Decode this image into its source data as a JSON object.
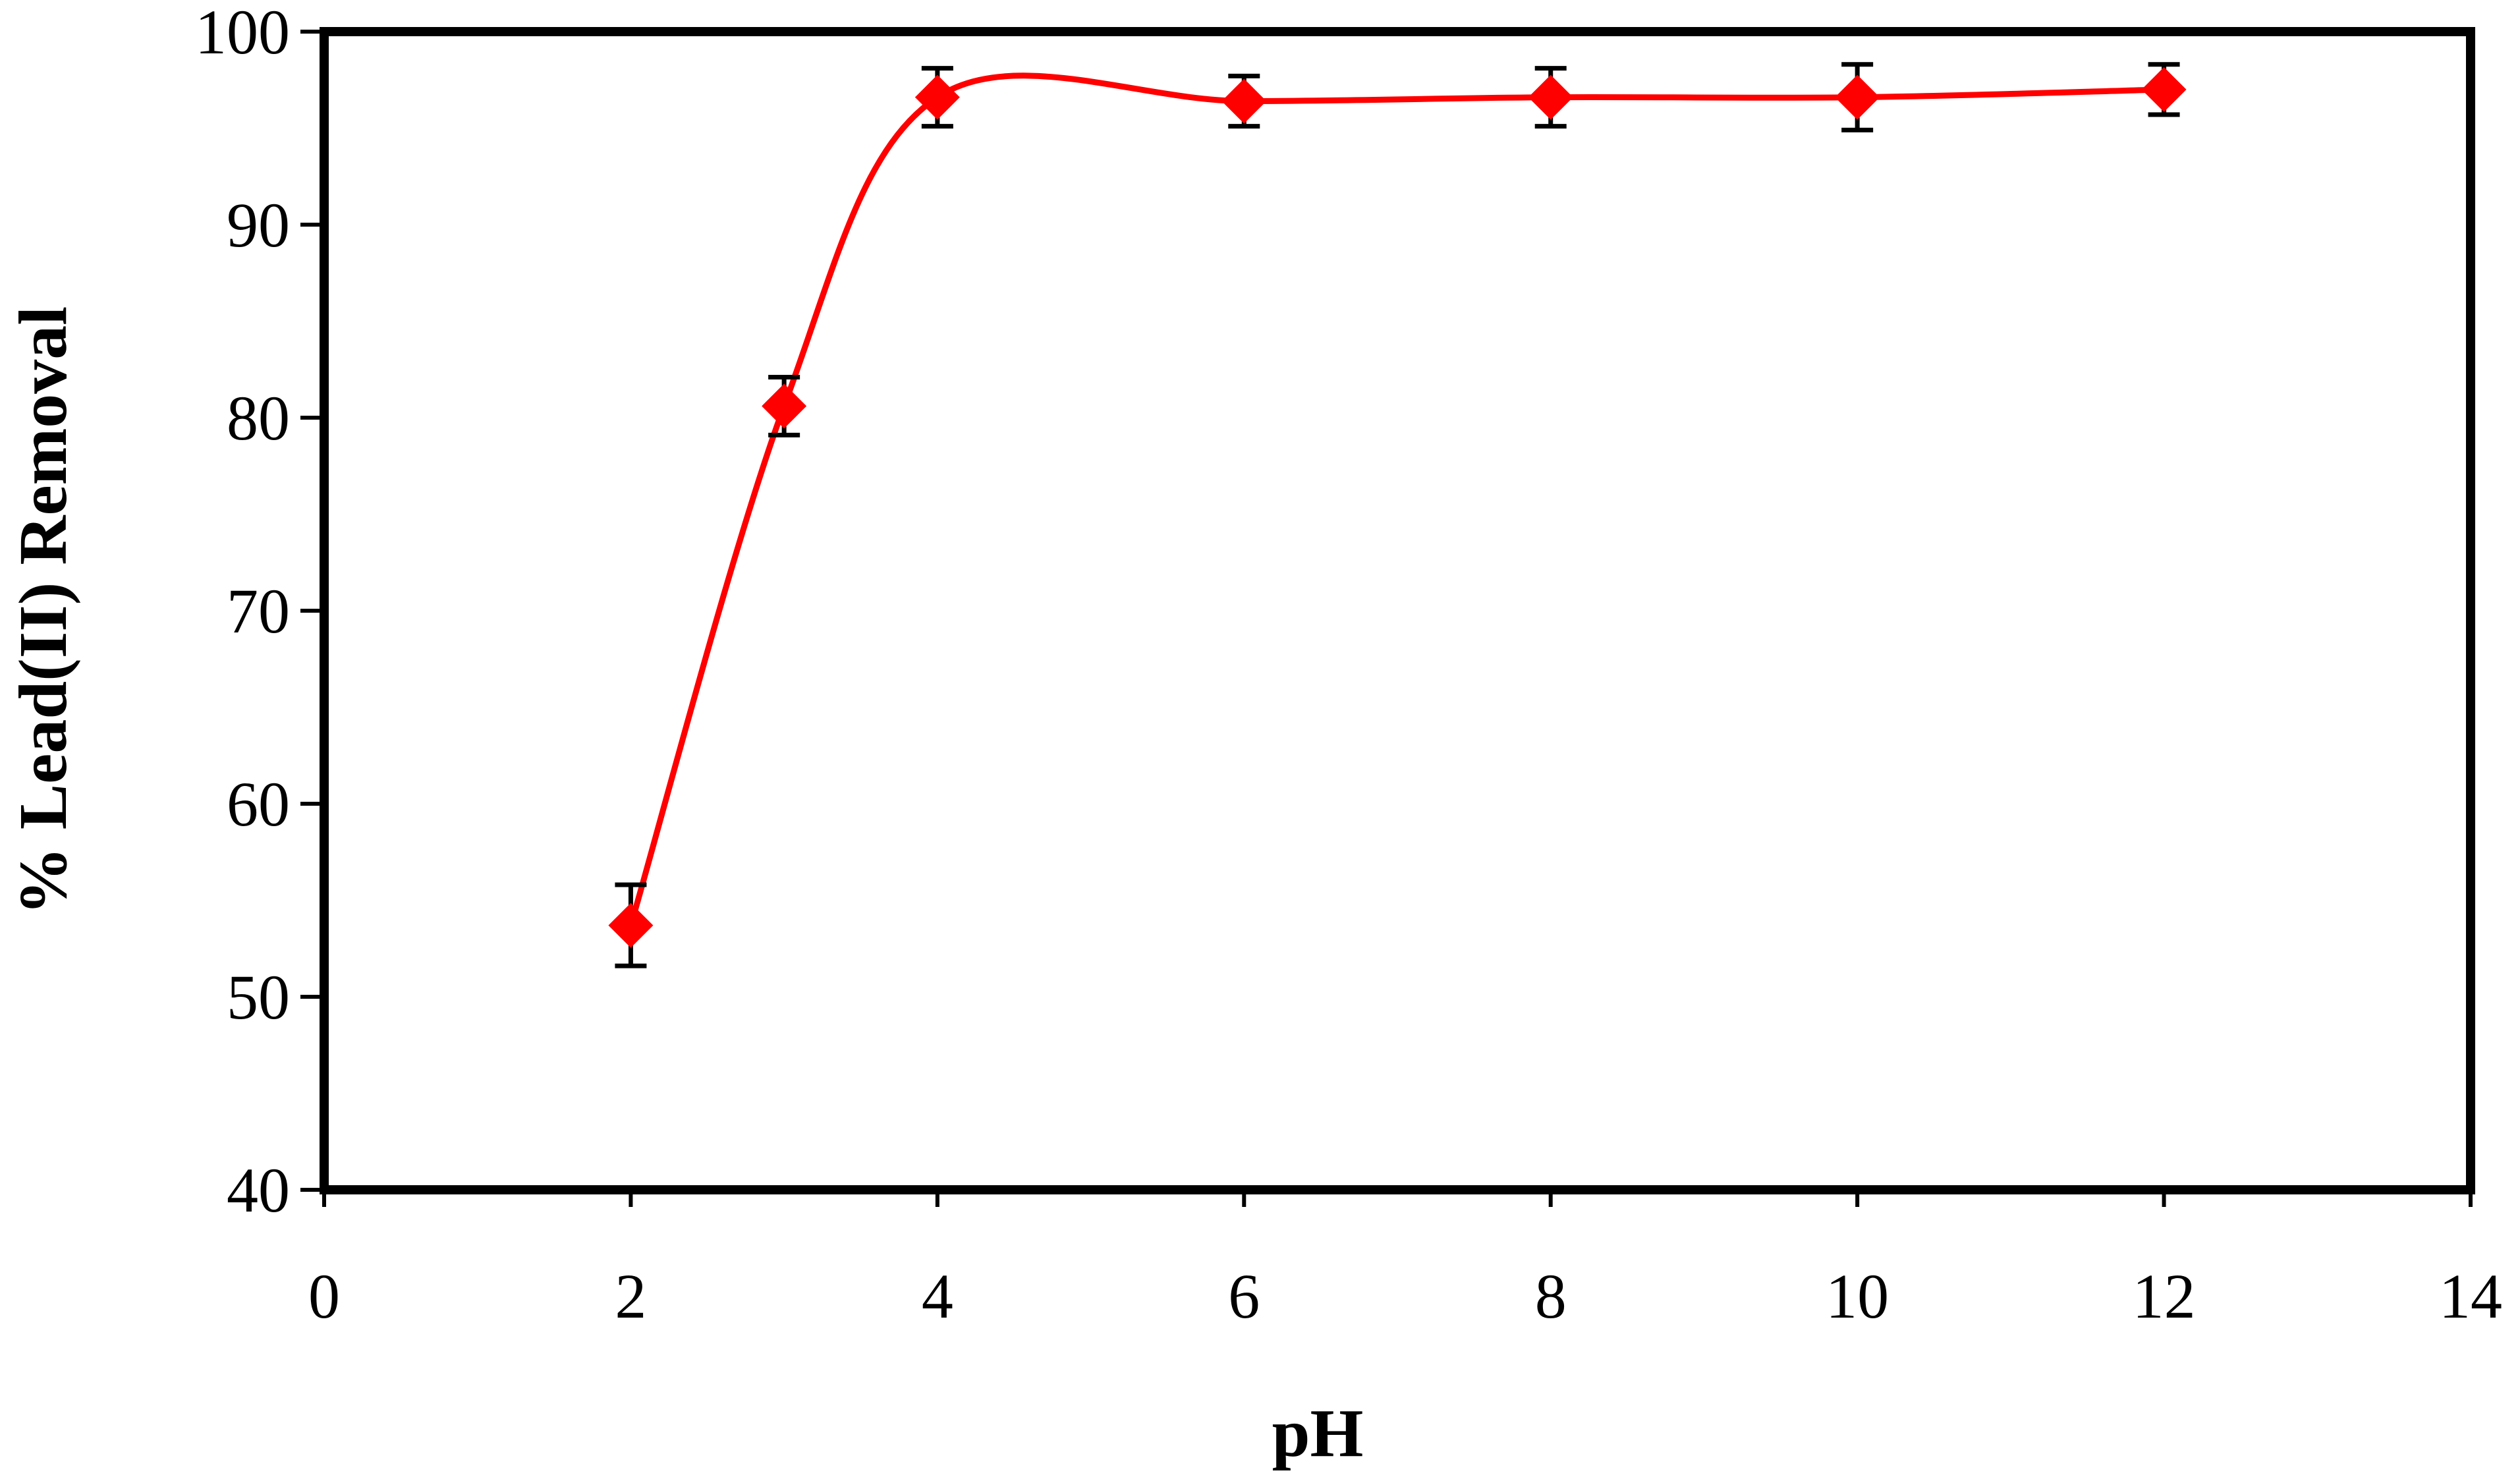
{
  "chart_data": {
    "type": "line",
    "title": "",
    "xlabel": "pH",
    "ylabel": "% Lead(II) Removal",
    "xlim": [
      0,
      14
    ],
    "ylim": [
      40,
      100
    ],
    "x_ticks": [
      0,
      2,
      4,
      6,
      8,
      10,
      12,
      14
    ],
    "y_ticks": [
      40,
      50,
      60,
      70,
      80,
      90,
      100
    ],
    "grid": false,
    "legend": "none",
    "smooth": true,
    "marker": "diamond",
    "series": [
      {
        "color": "#ff0000",
        "x": [
          2,
          3,
          4,
          6,
          8,
          10,
          12
        ],
        "y": [
          53.7,
          80.6,
          96.6,
          96.4,
          96.6,
          96.6,
          97.0
        ],
        "error": [
          2.1,
          1.5,
          1.5,
          1.3,
          1.5,
          1.7,
          1.3
        ]
      }
    ]
  }
}
